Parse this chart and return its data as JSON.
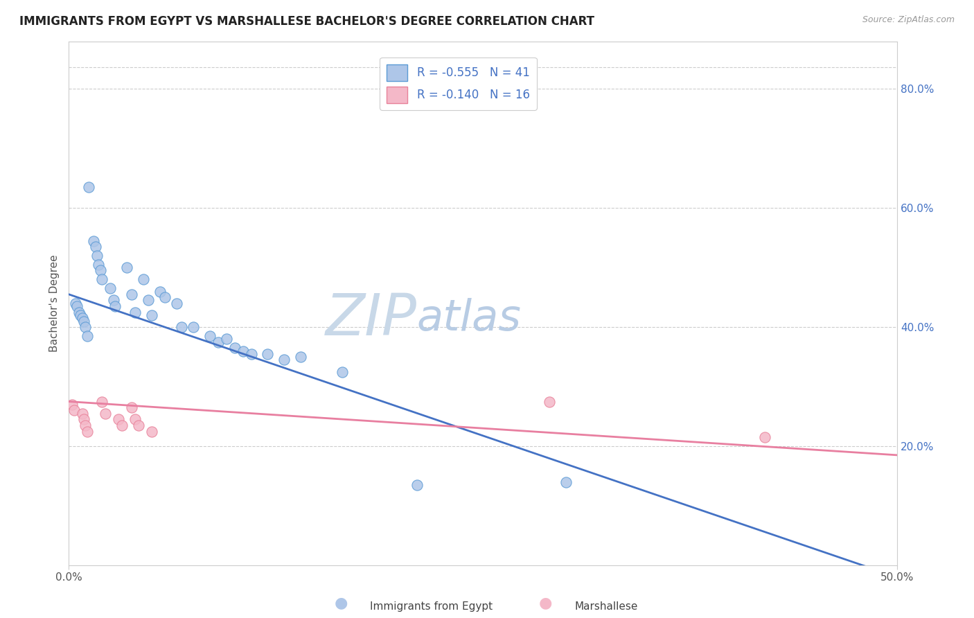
{
  "title": "IMMIGRANTS FROM EGYPT VS MARSHALLESE BACHELOR'S DEGREE CORRELATION CHART",
  "source": "Source: ZipAtlas.com",
  "ylabel": "Bachelor's Degree",
  "xlim": [
    0.0,
    0.5
  ],
  "ylim": [
    0.0,
    0.88
  ],
  "right_ytick_labels": [
    "20.0%",
    "40.0%",
    "60.0%",
    "80.0%"
  ],
  "right_ytick_values": [
    0.2,
    0.4,
    0.6,
    0.8
  ],
  "xtick_values": [
    0.0,
    0.5
  ],
  "xtick_labels": [
    "0.0%",
    "50.0%"
  ],
  "blue_scatter": [
    [
      0.004,
      0.44
    ],
    [
      0.005,
      0.435
    ],
    [
      0.006,
      0.425
    ],
    [
      0.007,
      0.42
    ],
    [
      0.008,
      0.415
    ],
    [
      0.009,
      0.41
    ],
    [
      0.01,
      0.4
    ],
    [
      0.011,
      0.385
    ],
    [
      0.015,
      0.545
    ],
    [
      0.016,
      0.535
    ],
    [
      0.017,
      0.52
    ],
    [
      0.018,
      0.505
    ],
    [
      0.019,
      0.495
    ],
    [
      0.02,
      0.48
    ],
    [
      0.025,
      0.465
    ],
    [
      0.027,
      0.445
    ],
    [
      0.028,
      0.435
    ],
    [
      0.035,
      0.5
    ],
    [
      0.038,
      0.455
    ],
    [
      0.04,
      0.425
    ],
    [
      0.045,
      0.48
    ],
    [
      0.048,
      0.445
    ],
    [
      0.05,
      0.42
    ],
    [
      0.055,
      0.46
    ],
    [
      0.058,
      0.45
    ],
    [
      0.065,
      0.44
    ],
    [
      0.068,
      0.4
    ],
    [
      0.075,
      0.4
    ],
    [
      0.085,
      0.385
    ],
    [
      0.09,
      0.375
    ],
    [
      0.095,
      0.38
    ],
    [
      0.1,
      0.365
    ],
    [
      0.105,
      0.36
    ],
    [
      0.11,
      0.355
    ],
    [
      0.12,
      0.355
    ],
    [
      0.13,
      0.345
    ],
    [
      0.14,
      0.35
    ],
    [
      0.165,
      0.325
    ],
    [
      0.21,
      0.135
    ],
    [
      0.3,
      0.14
    ],
    [
      0.012,
      0.635
    ]
  ],
  "pink_scatter": [
    [
      0.002,
      0.27
    ],
    [
      0.003,
      0.26
    ],
    [
      0.008,
      0.255
    ],
    [
      0.009,
      0.245
    ],
    [
      0.01,
      0.235
    ],
    [
      0.011,
      0.225
    ],
    [
      0.02,
      0.275
    ],
    [
      0.022,
      0.255
    ],
    [
      0.03,
      0.245
    ],
    [
      0.032,
      0.235
    ],
    [
      0.038,
      0.265
    ],
    [
      0.04,
      0.245
    ],
    [
      0.042,
      0.235
    ],
    [
      0.05,
      0.225
    ],
    [
      0.29,
      0.275
    ],
    [
      0.42,
      0.215
    ]
  ],
  "blue_line_x": [
    0.0,
    0.5
  ],
  "blue_line_y": [
    0.455,
    -0.02
  ],
  "pink_line_x": [
    0.0,
    0.5
  ],
  "pink_line_y": [
    0.275,
    0.185
  ],
  "blue_line_color": "#4472c4",
  "pink_line_color": "#e87fa0",
  "scatter_blue_face": "#aec6e8",
  "scatter_blue_edge": "#5b9bd5",
  "scatter_pink_face": "#f4b8c8",
  "scatter_pink_edge": "#e8829a",
  "scatter_alpha": 0.85,
  "scatter_size": 120,
  "right_yaxis_color": "#4472c4",
  "legend_label_color": "#4472c4",
  "watermark_zip_color": "#c8d8e8",
  "watermark_atlas_color": "#b8cce4",
  "watermark_fontsize": 60
}
